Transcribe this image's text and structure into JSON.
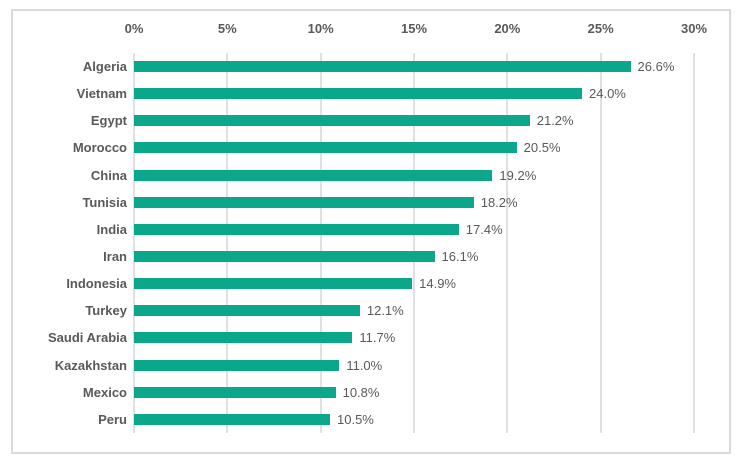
{
  "chart_data": {
    "type": "bar",
    "orientation": "horizontal",
    "title": "",
    "xlabel": "",
    "ylabel": "",
    "categories": [
      "Algeria",
      "Vietnam",
      "Egypt",
      "Morocco",
      "China",
      "Tunisia",
      "India",
      "Iran",
      "Indonesia",
      "Turkey",
      "Saudi Arabia",
      "Kazakhstan",
      "Mexico",
      "Peru"
    ],
    "values": [
      26.6,
      24.0,
      21.2,
      20.5,
      19.2,
      18.2,
      17.4,
      16.1,
      14.9,
      12.1,
      11.7,
      11.0,
      10.8,
      10.5
    ],
    "data_labels": [
      "26.6%",
      "24.0%",
      "21.2%",
      "20.5%",
      "19.2%",
      "18.2%",
      "17.4%",
      "16.1%",
      "14.9%",
      "12.1%",
      "11.7%",
      "11.0%",
      "10.8%",
      "10.5%"
    ],
    "x_axis": {
      "position": "top",
      "tick_labels": [
        "0%",
        "5%",
        "10%",
        "15%",
        "20%",
        "25%",
        "30%"
      ],
      "min": 0,
      "max": 30,
      "step": 5
    },
    "grid": "vertical",
    "legend_position": "none",
    "colors": {
      "bar": "#0aa78a",
      "label_text": "#595959",
      "gridline": "#e0e0e0",
      "frame_border": "#dadada",
      "background": "#ffffff"
    }
  }
}
